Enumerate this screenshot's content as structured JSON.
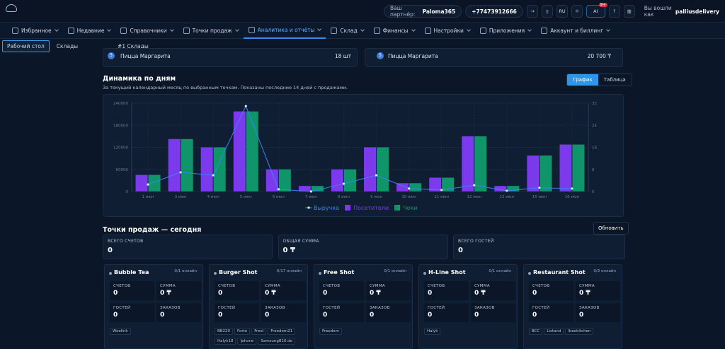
{
  "topbar": {
    "partner_label": "Ваш партнёр:",
    "partner": "Paloma365",
    "phone": "+77473912666",
    "lang": "RU",
    "ai": "AI",
    "badge": "9+",
    "user_label": "Вы вошли как",
    "user": "palliusdelivery"
  },
  "nav": [
    "Избранное",
    "Недавние",
    "Справочники",
    "Точки продаж",
    "Аналитика и отчёты",
    "Склад",
    "Финансы",
    "Настройки",
    "Приложения",
    "Аккаунт и биллинг"
  ],
  "tabs": [
    "Рабочий стол",
    "Склады",
    "#1 Склады"
  ],
  "top_cards": [
    {
      "badge": "5",
      "name": "Пицца Маргарита",
      "value": "18 шт"
    },
    {
      "badge": "5",
      "name": "Пицца Маргарита",
      "value": "20 700 ₸"
    }
  ],
  "dynamics": {
    "title": "Динамика по дням",
    "subtitle": "За текущий календарный месяц по выбранным точкам. Показаны последние 14 дней с продажами.",
    "toggle": [
      "График",
      "Таблица"
    ]
  },
  "chart_data": {
    "type": "bar",
    "categories": [
      "1 июн",
      "3 июн",
      "4 июн",
      "5 июн",
      "6 июн",
      "7 июн",
      "8 июн",
      "9 июн",
      "10 июн",
      "11 июн",
      "12 июн",
      "13 июн",
      "15 июн",
      "16 июн"
    ],
    "ylim": [
      0,
      240000
    ],
    "yticks": [
      0,
      60000,
      120000,
      180000,
      240000
    ],
    "y2lim": [
      0,
      32
    ],
    "y2ticks": [
      0,
      8,
      16,
      24,
      32
    ],
    "grid": true,
    "series": [
      {
        "name": "Выручка",
        "type": "line",
        "color": "#3b82f6",
        "values": [
          19000,
          52000,
          44000,
          232000,
          6000,
          0,
          21000,
          44000,
          8000,
          4000,
          17000,
          2000,
          10000,
          8000
        ]
      },
      {
        "name": "Посетители",
        "type": "bar",
        "color": "#7c3aed",
        "axis": "y2",
        "values": [
          6,
          19,
          16,
          29,
          8,
          2,
          8,
          16,
          3,
          5,
          20,
          2,
          13,
          17
        ]
      },
      {
        "name": "Чеки",
        "type": "bar",
        "color": "#10946a",
        "axis": "y2",
        "values": [
          6,
          19,
          16,
          29,
          8,
          2,
          8,
          16,
          3,
          5,
          20,
          2,
          13,
          17
        ]
      }
    ]
  },
  "points": {
    "title": "Точки продаж — сегодня",
    "refresh": "Обновить",
    "summary": [
      {
        "label": "ВСЕГО СЧЕТОВ",
        "value": "0"
      },
      {
        "label": "ОБЩАЯ СУММА",
        "value": "0 ₸"
      },
      {
        "label": "ВСЕГО ГОСТЕЙ",
        "value": "0"
      }
    ],
    "stat_labels": [
      "СЧЕТОВ",
      "СУММА",
      "ГОСТЕЙ",
      "ЗАКАЗОВ"
    ],
    "cards": [
      {
        "name": "Bubble Tea",
        "online": "0/1 онлайн",
        "stats": [
          "0",
          "0 ₸",
          "0",
          "0"
        ],
        "tags": [
          "Weelink"
        ]
      },
      {
        "name": "Burger Shot",
        "online": "0/17 онлайн",
        "stats": [
          "0",
          "0 ₸",
          "0",
          "0"
        ],
        "tags": [
          "BB220",
          "Forte",
          "Freel",
          "Freedom21",
          "Halyk18",
          "Iphone",
          "Samsung810.de"
        ]
      },
      {
        "name": "Free Shot",
        "online": "0/1 онлайн",
        "stats": [
          "0",
          "0 ₸",
          "0",
          "0"
        ],
        "tags": [
          "Freedom"
        ]
      },
      {
        "name": "H-Line Shot",
        "online": "0/1 онлайн",
        "stats": [
          "0",
          "0 ₸",
          "0",
          "0"
        ],
        "tags": [
          "Halyk"
        ]
      },
      {
        "name": "Restaurant Shot",
        "online": "0/3 онлайн",
        "stats": [
          "0",
          "0 ₸",
          "0",
          "0"
        ],
        "tags": [
          "BCC",
          "Listand",
          "Ibookitchen"
        ]
      }
    ]
  }
}
